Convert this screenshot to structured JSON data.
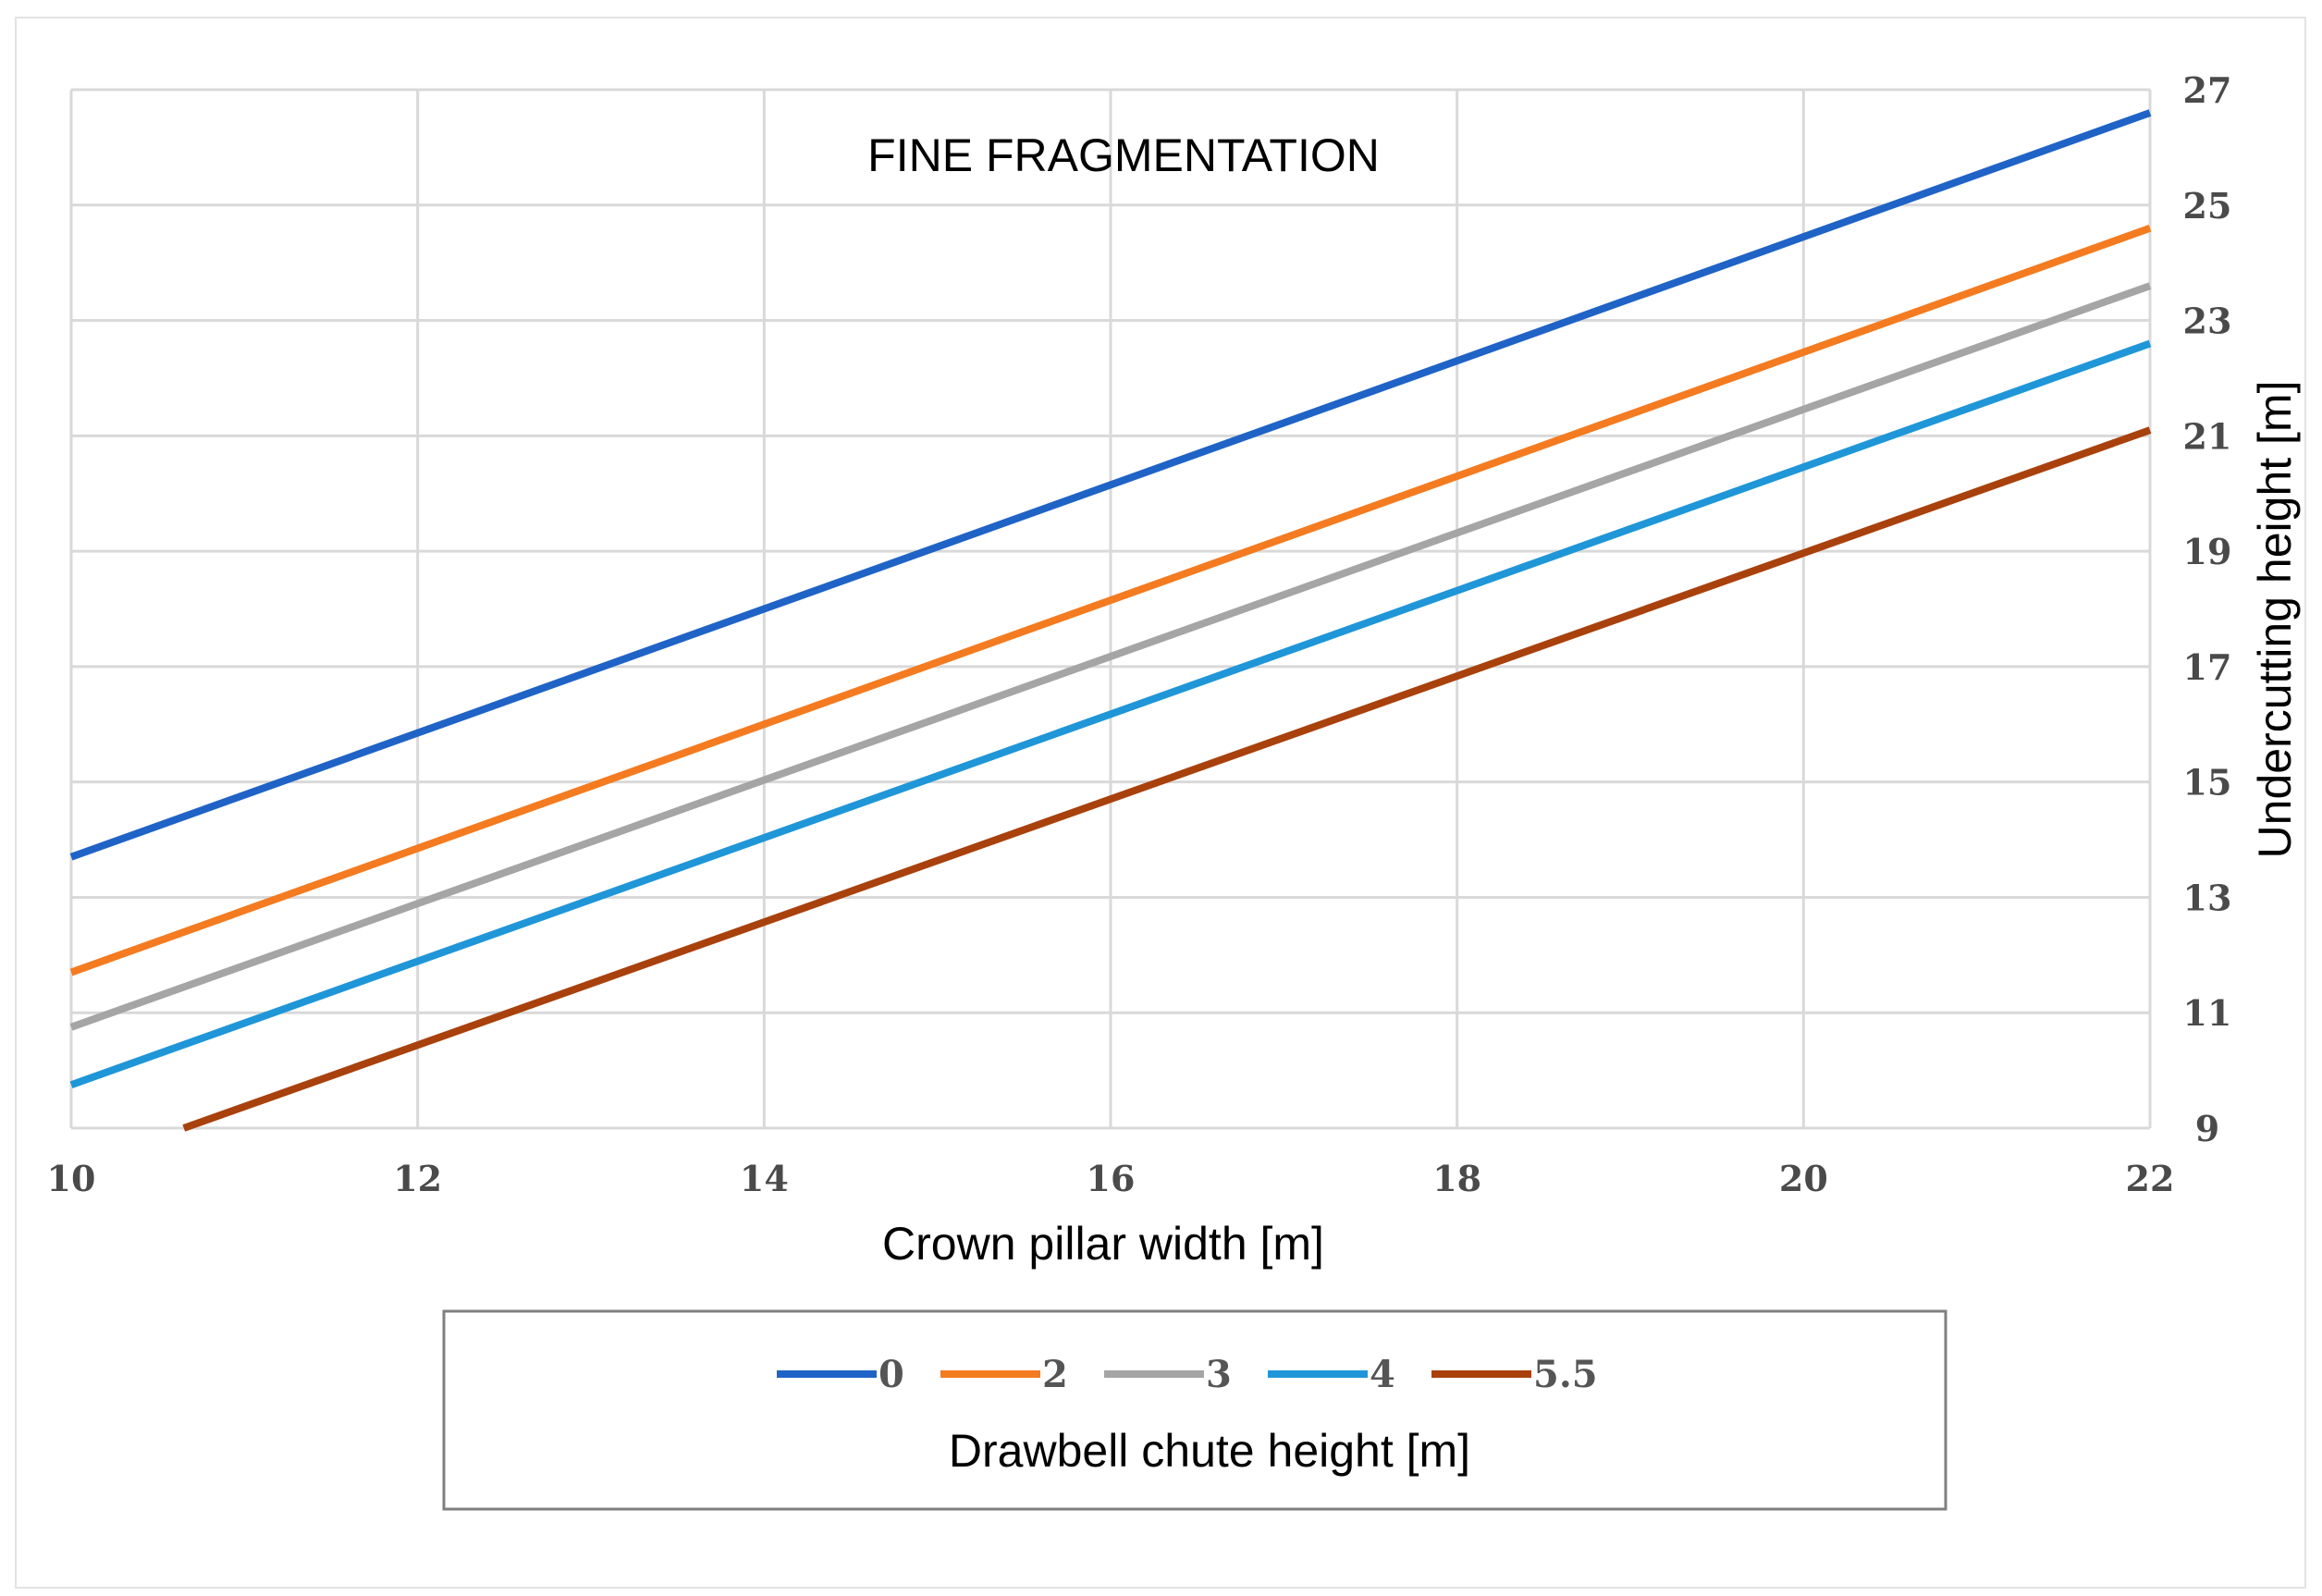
{
  "chart_data": {
    "type": "line",
    "title": "FINE FRAGMENTATION",
    "xlabel": "Crown pillar width [m]",
    "ylabel": "Undercutting height [m]",
    "xlim": [
      10,
      22
    ],
    "ylim": [
      9,
      27
    ],
    "xticks": [
      10,
      12,
      14,
      16,
      18,
      20,
      22
    ],
    "yticks": [
      9,
      11,
      13,
      15,
      17,
      19,
      21,
      23,
      25,
      27
    ],
    "y_axis_side": "right",
    "grid": true,
    "legend_title": "Drawbell chute height [m]",
    "legend_position": "bottom",
    "series": [
      {
        "name": "0",
        "color": "#1f63c6",
        "points": [
          [
            10,
            13.7
          ],
          [
            22,
            26.6
          ]
        ]
      },
      {
        "name": "2",
        "color": "#f47b20",
        "points": [
          [
            10,
            11.7
          ],
          [
            22,
            24.6
          ]
        ]
      },
      {
        "name": "3",
        "color": "#a5a5a5",
        "points": [
          [
            10,
            10.75
          ],
          [
            22,
            23.6
          ]
        ]
      },
      {
        "name": "4",
        "color": "#1f96d8",
        "points": [
          [
            10,
            9.75
          ],
          [
            22,
            22.6
          ]
        ]
      },
      {
        "name": "5.5",
        "color": "#a9410d",
        "points": [
          [
            10.65,
            9.0
          ],
          [
            22,
            21.1
          ]
        ]
      }
    ]
  }
}
